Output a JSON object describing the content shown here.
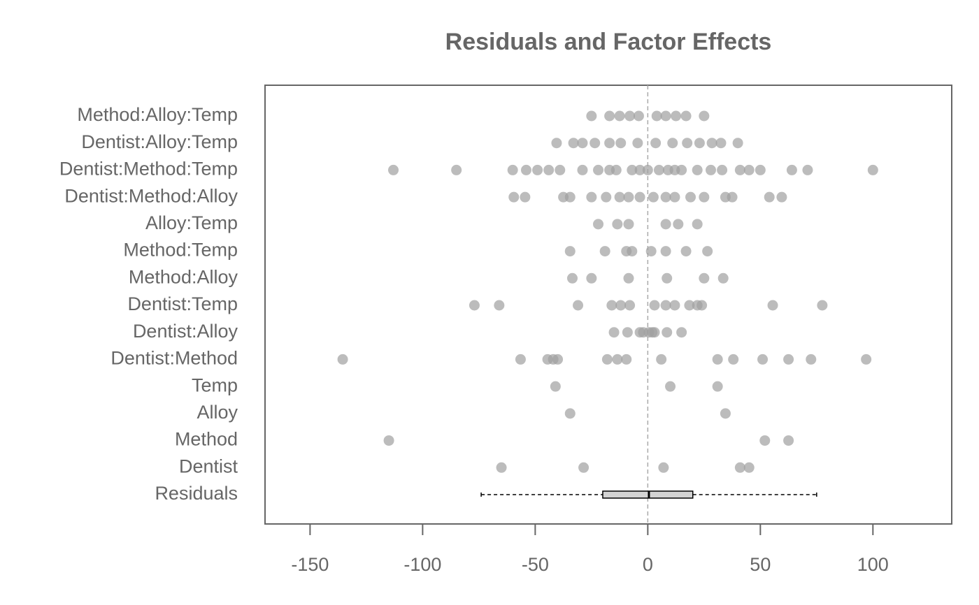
{
  "chart_data": {
    "type": "strip",
    "title": "Residuals and Factor Effects",
    "xlim": [
      -170,
      135
    ],
    "xticks": [
      -150,
      -100,
      -50,
      0,
      50,
      100
    ],
    "reference_line": 0,
    "point_color": "#a0a0a0",
    "box_color": "#d3d3d3",
    "series": [
      {
        "name": "Method:Alloy:Temp",
        "values": [
          -25,
          -17,
          -12.5,
          -8,
          -4,
          4,
          8,
          12.5,
          17,
          25
        ]
      },
      {
        "name": "Dentist:Alloy:Temp",
        "values": [
          -40.5,
          -33,
          -29,
          -23.5,
          -17,
          -12,
          -4.5,
          3.5,
          11,
          17.5,
          23,
          28.5,
          32.5,
          40
        ]
      },
      {
        "name": "Dentist:Method:Temp",
        "values": [
          -113,
          -85,
          -60,
          -54,
          -49,
          -44,
          -39,
          -29,
          -22,
          -17,
          -14,
          -7,
          -3.5,
          0,
          5,
          9,
          12,
          15,
          22,
          28,
          33,
          41,
          45,
          50,
          64,
          71,
          100
        ]
      },
      {
        "name": "Dentist:Method:Alloy",
        "values": [
          -59.5,
          -54.5,
          -37.5,
          -34.5,
          -25,
          -18.5,
          -12.5,
          -8.5,
          -3.5,
          2.5,
          8,
          12,
          19,
          25,
          34.5,
          37.5,
          54,
          59.5
        ]
      },
      {
        "name": "Alloy:Temp",
        "values": [
          -22,
          -13.5,
          -8.5,
          8,
          13.5,
          22
        ]
      },
      {
        "name": "Method:Temp",
        "values": [
          -34.5,
          -19,
          -9.5,
          -7,
          1.5,
          8,
          17,
          26.5
        ]
      },
      {
        "name": "Method:Alloy",
        "values": [
          -33.5,
          -25,
          -8.5,
          8.5,
          25,
          33.5
        ]
      },
      {
        "name": "Dentist:Temp",
        "values": [
          -77,
          -66,
          -31,
          -16,
          -12,
          -8,
          3,
          8,
          12,
          18.5,
          22,
          24,
          55.5,
          77.5
        ]
      },
      {
        "name": "Dentist:Alloy",
        "values": [
          -15,
          -9,
          -3.5,
          -2,
          0.5,
          2,
          3,
          8.5,
          15
        ]
      },
      {
        "name": "Dentist:Method",
        "values": [
          -135.5,
          -56.5,
          -44.5,
          -42,
          -40,
          -18,
          -13.5,
          -9.5,
          6,
          31,
          38,
          51,
          62.5,
          72.5,
          97
        ]
      },
      {
        "name": "Temp",
        "values": [
          -41,
          10,
          31
        ]
      },
      {
        "name": "Alloy",
        "values": [
          -34.5,
          34.5
        ]
      },
      {
        "name": "Method",
        "values": [
          -115,
          52,
          62.5
        ]
      },
      {
        "name": "Dentist",
        "values": [
          -65,
          -28.5,
          7,
          41,
          45
        ]
      }
    ],
    "box": {
      "name": "Residuals",
      "min": -74,
      "q1": -20,
      "median": 0.5,
      "q3": 20,
      "max": 75
    }
  }
}
